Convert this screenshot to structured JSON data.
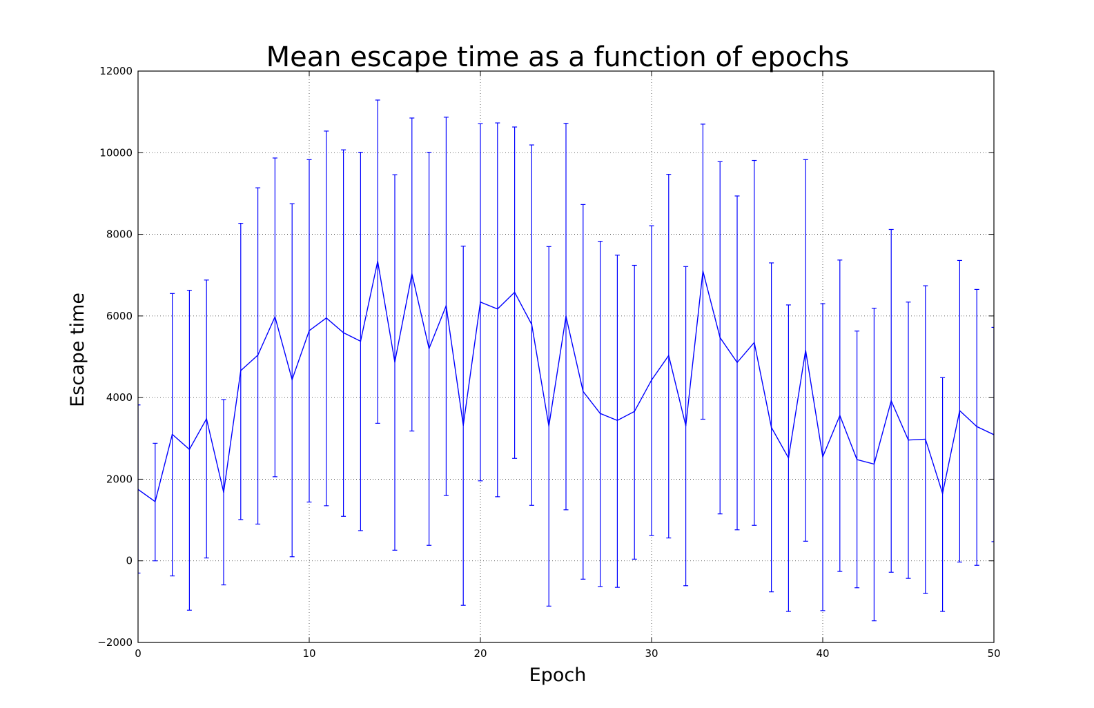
{
  "chart_data": {
    "type": "line",
    "title": "Mean escape time as a function of epochs",
    "xlabel": "Epoch",
    "ylabel": "Escape time",
    "xlim": [
      0,
      50
    ],
    "ylim": [
      -2000,
      12000
    ],
    "xticks": [
      0,
      10,
      20,
      30,
      40,
      50
    ],
    "yticks": [
      -2000,
      0,
      2000,
      4000,
      6000,
      8000,
      10000,
      12000
    ],
    "xtick_labels": [
      "0",
      "10",
      "20",
      "30",
      "40",
      "50"
    ],
    "ytick_labels": [
      "−2000",
      "0",
      "2000",
      "4000",
      "6000",
      "8000",
      "10000",
      "12000"
    ],
    "grid": true,
    "grid_style": "dotted",
    "line_color": "#0000ff",
    "error_bars": true,
    "series": [
      {
        "x": [
          0,
          1,
          2,
          3,
          4,
          5,
          6,
          7,
          8,
          9,
          10,
          11,
          12,
          13,
          14,
          15,
          16,
          17,
          18,
          19,
          20,
          21,
          22,
          23,
          24,
          25,
          26,
          27,
          28,
          29,
          30,
          31,
          32,
          33,
          34,
          35,
          36,
          37,
          38,
          39,
          40,
          41,
          42,
          43,
          44,
          45,
          46,
          47,
          48,
          49,
          50
        ],
        "y": [
          1750,
          1450,
          3100,
          2730,
          3480,
          1680,
          4660,
          5040,
          5980,
          4440,
          5640,
          5950,
          5590,
          5380,
          7340,
          4870,
          7030,
          5200,
          6250,
          3320,
          6340,
          6170,
          6580,
          5790,
          3300,
          5990,
          4150,
          3610,
          3440,
          3660,
          4430,
          5030,
          3310,
          7100,
          5470,
          4860,
          5350,
          3270,
          2520,
          5160,
          2550,
          3560,
          2480,
          2370,
          3920,
          2960,
          2980,
          1650,
          3680,
          3290,
          3090
        ],
        "y_lower": [
          -300,
          0,
          -370,
          -1210,
          70,
          -590,
          1010,
          900,
          2060,
          100,
          1440,
          1350,
          1090,
          740,
          3370,
          260,
          3180,
          380,
          1600,
          -1090,
          1960,
          1570,
          2510,
          1360,
          -1110,
          1250,
          -450,
          -630,
          -650,
          40,
          620,
          560,
          -610,
          3470,
          1150,
          760,
          870,
          -760,
          -1240,
          480,
          -1220,
          -260,
          -660,
          -1470,
          -280,
          -430,
          -800,
          -1240,
          -30,
          -110,
          470
        ],
        "y_upper": [
          3820,
          2880,
          6550,
          6630,
          6880,
          3950,
          8270,
          9140,
          9870,
          8750,
          9830,
          10530,
          10070,
          10010,
          11290,
          9460,
          10850,
          10010,
          10870,
          7710,
          10710,
          10730,
          10630,
          10190,
          7700,
          10720,
          8730,
          7830,
          7490,
          7240,
          8210,
          9470,
          7210,
          10700,
          9780,
          8940,
          9810,
          7300,
          6270,
          9830,
          6300,
          7370,
          5630,
          6190,
          8120,
          6340,
          6740,
          4490,
          7360,
          6650,
          5720
        ]
      }
    ]
  }
}
